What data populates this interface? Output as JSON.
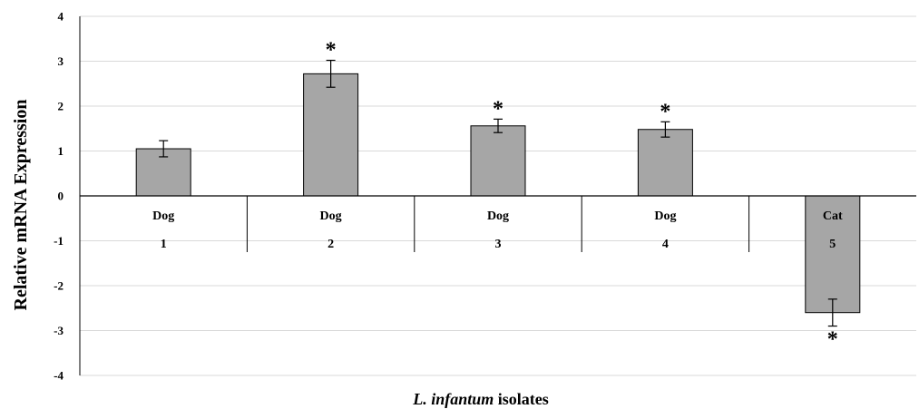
{
  "chart_data": {
    "type": "bar",
    "title": "",
    "ylabel": "Relative mRNA Expression",
    "xlabel_italic": "L. infantum",
    "xlabel_rest": " isolates",
    "ylim": [
      -4,
      4
    ],
    "yticks": [
      -4,
      -3,
      -2,
      -1,
      0,
      1,
      2,
      3,
      4
    ],
    "grid": true,
    "categories": [
      {
        "host": "Dog",
        "number": "1"
      },
      {
        "host": "Dog",
        "number": "2"
      },
      {
        "host": "Dog",
        "number": "3"
      },
      {
        "host": "Dog",
        "number": "4"
      },
      {
        "host": "Cat",
        "number": "5"
      }
    ],
    "values": [
      1.05,
      2.72,
      1.56,
      1.48,
      -2.6
    ],
    "errors": [
      0.18,
      0.3,
      0.15,
      0.17,
      0.3
    ],
    "significance": [
      "",
      "*",
      "*",
      "*",
      "*"
    ],
    "bar_color": "#a6a6a6"
  }
}
